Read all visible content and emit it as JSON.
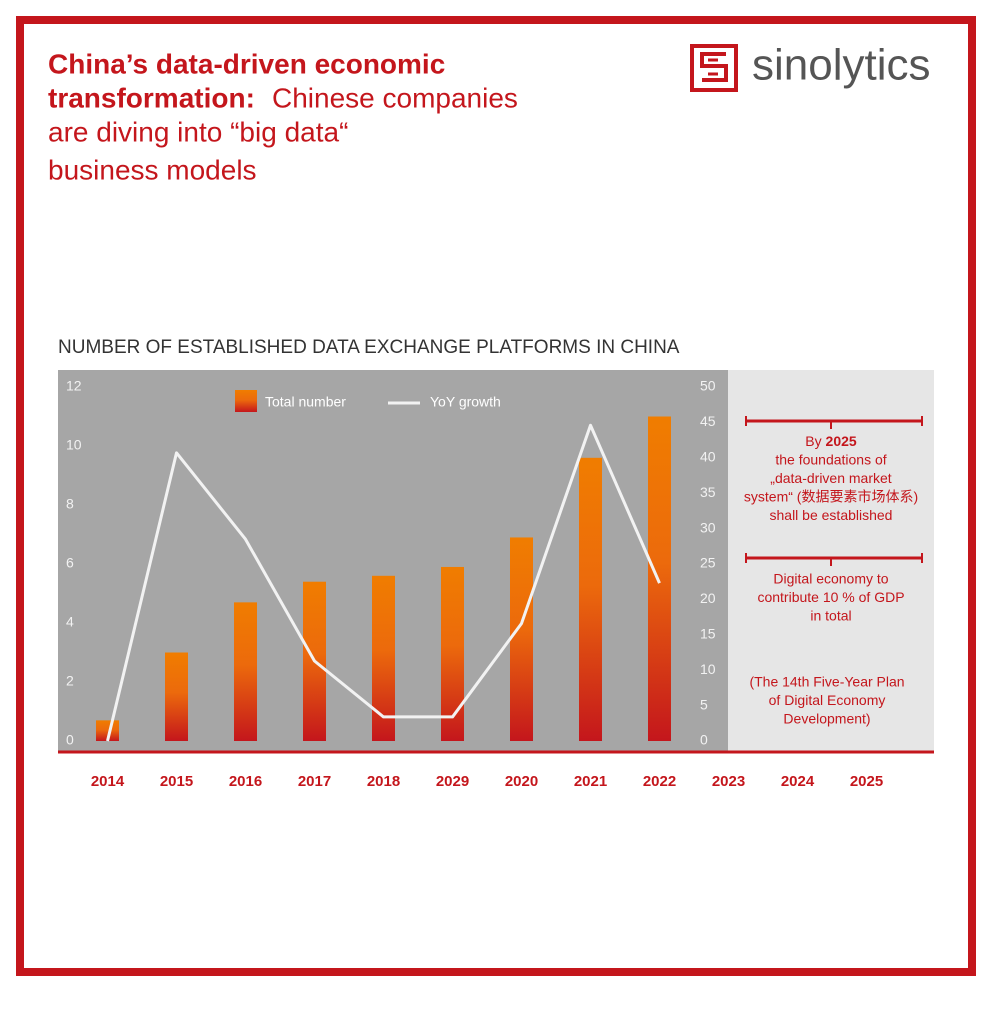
{
  "chart_data": {
    "type": "bar",
    "header_title": [
      "China’s data-driven economic",
      "transformation:"
    ],
    "header_subtitle": [
      "Chinese companies",
      "are diving into “big data“",
      "business models"
    ],
    "brand": "sinolytics",
    "title": "NUMBER OF ESTABLISHED DATA EXCHANGE PLATFORMS IN CHINA",
    "categories": [
      "2014",
      "2015",
      "2016",
      "2017",
      "2018",
      "2029",
      "2020",
      "2021",
      "2022",
      "2023",
      "2024",
      "2025"
    ],
    "series": [
      {
        "name": "Total number",
        "color": "#f07d00",
        "values": [
          0.7,
          3.0,
          4.7,
          5.4,
          5.6,
          5.9,
          6.9,
          9.6,
          11.0,
          null,
          null,
          null
        ]
      },
      {
        "name": "YoY growth",
        "color": "#f2f2f2",
        "axis": "y2",
        "type": "line",
        "values": [
          0,
          40.7,
          28.5,
          11.3,
          3.4,
          3.4,
          16.6,
          44.6,
          22.3,
          null,
          null,
          null
        ]
      }
    ],
    "ylim": [
      0,
      12
    ],
    "yticks": [
      0,
      2,
      4,
      6,
      8,
      10,
      12
    ],
    "y2lim": [
      0,
      50
    ],
    "y2ticks": [
      0,
      5,
      10,
      15,
      20,
      25,
      30,
      35,
      40,
      45,
      50
    ],
    "annotations": {
      "goal_prefix": "By",
      "goal_year": "2025",
      "goal_lines": [
        "the foundations of",
        "„data-driven market",
        "system“ (数据要素市场体系)",
        "shall be established"
      ],
      "target_lines": [
        "Digital economy to",
        "contribute 10 % of GDP",
        "in total"
      ],
      "source_lines": [
        "(The 14th Five-Year Plan",
        "of Digital Economy",
        "Development)"
      ]
    }
  }
}
